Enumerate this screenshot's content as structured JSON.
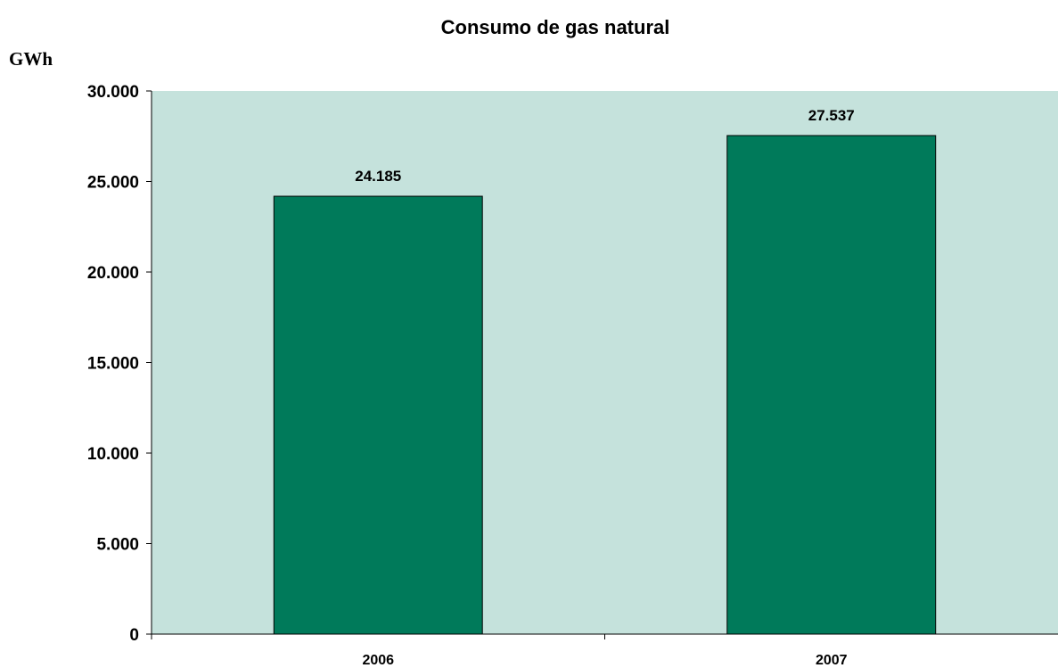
{
  "chart_data": {
    "type": "bar",
    "title": "Consumo de gas natural",
    "ylabel": "GWh",
    "xlabel": "",
    "categories": [
      "2006",
      "2007"
    ],
    "values": [
      24185,
      27537
    ],
    "value_labels": [
      "24.185",
      "27.537"
    ],
    "ylim": [
      0,
      30000
    ],
    "y_ticks": [
      0,
      5000,
      10000,
      15000,
      20000,
      25000,
      30000
    ],
    "y_tick_labels": [
      "0",
      "5.000",
      "10.000",
      "15.000",
      "20.000",
      "25.000",
      "30.000"
    ],
    "grid": false,
    "legend": "none"
  },
  "colors": {
    "plot_background": "#c5e2dc",
    "bar_fill": "#007a5a",
    "bar_stroke": "#000000",
    "axis": "#000000"
  }
}
